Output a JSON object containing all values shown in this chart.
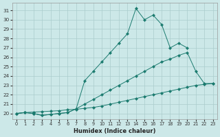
{
  "xlabel": "Humidex (Indice chaleur)",
  "bg_color": "#cce8e8",
  "grid_color": "#aacccc",
  "line_color": "#1a7a6e",
  "xlim": [
    -0.5,
    23.5
  ],
  "ylim": [
    19.4,
    31.8
  ],
  "xticks": [
    0,
    1,
    2,
    3,
    4,
    5,
    6,
    7,
    8,
    9,
    10,
    11,
    12,
    13,
    14,
    15,
    16,
    17,
    18,
    19,
    20,
    21,
    22,
    23
  ],
  "yticks": [
    20,
    21,
    22,
    23,
    24,
    25,
    26,
    27,
    28,
    29,
    30,
    31
  ],
  "line1_x": [
    0,
    1,
    2,
    3,
    4,
    5,
    6,
    7,
    8,
    9,
    10,
    11,
    12,
    13,
    14,
    15,
    16,
    17,
    18,
    19,
    20,
    21,
    22,
    23
  ],
  "line1_y": [
    20.0,
    20.1,
    20.15,
    20.2,
    20.25,
    20.3,
    20.4,
    20.45,
    20.55,
    20.65,
    20.8,
    21.0,
    21.2,
    21.4,
    21.6,
    21.8,
    22.0,
    22.2,
    22.4,
    22.6,
    22.8,
    23.0,
    23.1,
    23.2
  ],
  "line2_x": [
    0,
    1,
    2,
    3,
    4,
    5,
    6,
    7,
    8,
    9,
    10,
    11,
    12,
    13,
    14,
    15,
    16,
    17,
    18,
    19,
    20,
    21,
    22,
    23
  ],
  "line2_y": [
    20.0,
    20.1,
    20.0,
    19.8,
    19.9,
    20.0,
    20.1,
    20.5,
    21.0,
    21.5,
    22.0,
    22.5,
    23.0,
    23.5,
    24.0,
    24.5,
    25.0,
    25.5,
    25.8,
    26.2,
    26.5,
    24.5,
    23.2,
    23.2
  ],
  "line3_x": [
    0,
    1,
    2,
    3,
    4,
    5,
    6,
    7,
    8,
    9,
    10,
    11,
    12,
    13,
    14,
    15,
    16,
    17,
    18,
    19,
    20
  ],
  "line3_y": [
    20.0,
    20.1,
    20.0,
    19.8,
    19.9,
    20.0,
    20.1,
    20.5,
    23.5,
    24.5,
    25.5,
    26.5,
    27.5,
    28.5,
    31.2,
    30.0,
    30.5,
    29.5,
    27.0,
    27.5,
    27.0
  ]
}
